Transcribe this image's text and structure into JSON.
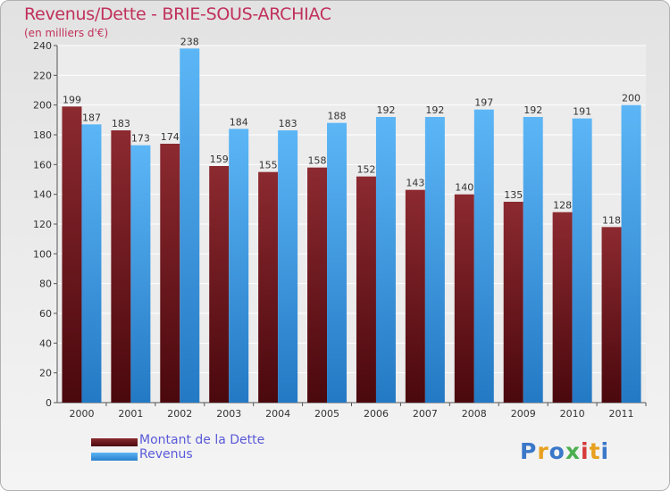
{
  "chart_data": {
    "type": "bar",
    "title": "Revenus/Dette - BRIE-SOUS-ARCHIAC",
    "subtitle": "(en milliers d'€)",
    "categories": [
      "2000",
      "2001",
      "2002",
      "2003",
      "2004",
      "2005",
      "2006",
      "2007",
      "2008",
      "2009",
      "2010",
      "2011"
    ],
    "series": [
      {
        "name": "Montant de la Dette",
        "color": "#7a1a1f",
        "values": [
          199,
          183,
          174,
          159,
          155,
          158,
          152,
          143,
          140,
          135,
          128,
          118
        ]
      },
      {
        "name": "Revenus",
        "color": "#4aa3e6",
        "values": [
          187,
          173,
          238,
          184,
          183,
          188,
          192,
          192,
          197,
          192,
          191,
          200
        ]
      }
    ],
    "ylim": [
      0,
      240
    ],
    "yticks": [
      0,
      20,
      40,
      60,
      80,
      100,
      120,
      140,
      160,
      180,
      200,
      220,
      240
    ],
    "grid": true,
    "legend_position": "bottom-left"
  },
  "logo": {
    "text": "Proxiti",
    "letters": [
      "P",
      "r",
      "o",
      "x",
      "i",
      "t",
      "i"
    ],
    "colors": [
      "#3a78c9",
      "#e8a020",
      "#3a78c9",
      "#4caf50",
      "#d63a3a",
      "#e8a020",
      "#3a78c9"
    ]
  }
}
